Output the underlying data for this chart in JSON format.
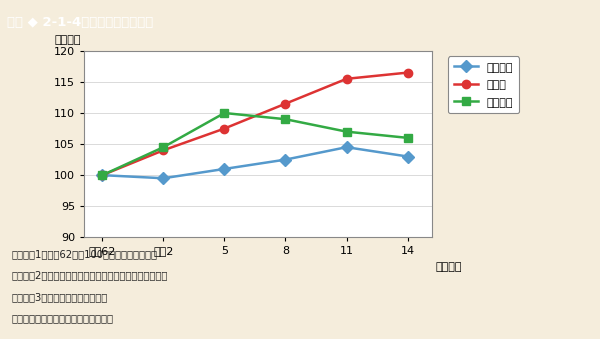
{
  "x_labels": [
    "昭和62",
    "平成2",
    "5",
    "8",
    "11",
    "14"
  ],
  "x_positions": [
    0,
    1,
    2,
    3,
    4,
    5
  ],
  "ylabel": "（指数）",
  "xlabel_suffix": "（年度）",
  "ylim": [
    90,
    120
  ],
  "yticks": [
    90,
    95,
    100,
    105,
    110,
    115,
    120
  ],
  "series": [
    {
      "label": "公民館数",
      "values": [
        100,
        99.5,
        101,
        102.5,
        104.5,
        103
      ],
      "color": "#5599cc",
      "marker": "D",
      "markersize": 6,
      "linewidth": 1.8
    },
    {
      "label": "職員数",
      "values": [
        100,
        104,
        107.5,
        111.5,
        115.5,
        116.5
      ],
      "color": "#dd3333",
      "marker": "o",
      "markersize": 6,
      "linewidth": 1.8
    },
    {
      "label": "利用者数",
      "values": [
        100,
        104.5,
        110,
        109,
        107,
        106
      ],
      "color": "#33aa44",
      "marker": "s",
      "markersize": 6,
      "linewidth": 1.8
    }
  ],
  "title": "図表 ◆ 2-1-4　公民館数等の推移",
  "title_bg_color": "#3bbfbf",
  "bg_color": "#f5eddc",
  "plot_bg_color": "#ffffff",
  "note_lines": [
    "（注）　1　昭和62年を100とした指数である。",
    "　　　　2　利用者数については，前年度間の数である。",
    "　　　　3　類似施設を含まない。",
    "（資料）文部科学者「社会教育調査」"
  ],
  "legend_fontsize": 8,
  "axis_fontsize": 8,
  "tick_fontsize": 8
}
